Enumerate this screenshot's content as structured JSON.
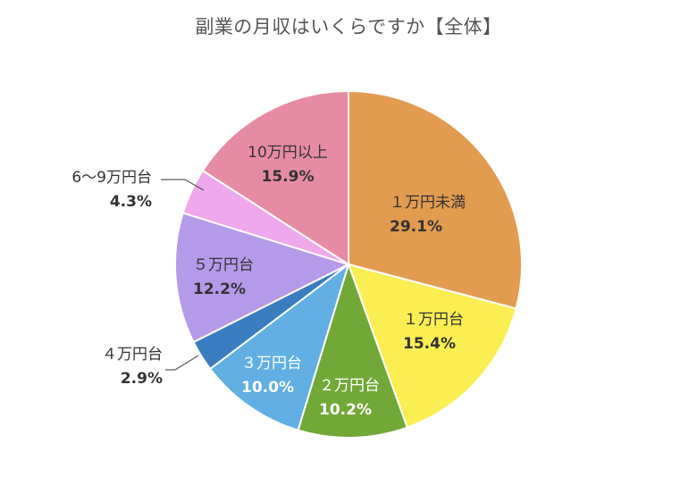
{
  "chart_data": {
    "type": "pie",
    "title": "副業の月収はいくらですか【全体】",
    "start_angle_deg": 0,
    "direction": "clockwise",
    "categories": [
      "1万円未満",
      "1万円台",
      "2万円台",
      "3万円台",
      "4万円台",
      "5万円台",
      "6〜9万円台",
      "10万円以上"
    ],
    "values": [
      29.1,
      15.4,
      10.2,
      10.0,
      2.9,
      12.2,
      4.3,
      15.9
    ],
    "labels": [
      "29.1%",
      "15.4%",
      "10.2%",
      "10.0%",
      "2.9%",
      "12.2%",
      "4.3%",
      "15.9%"
    ],
    "colors": [
      "#E39B4F",
      "#FBEE52",
      "#72A838",
      "#61AFE3",
      "#3A7DC0",
      "#B69AEA",
      "#F0A8EC",
      "#E78BA4"
    ],
    "unit": "%",
    "legend": "none (inline labels)"
  },
  "title": "副業の月収はいくらですか【全体】",
  "slices": [
    {
      "name": "１万円未満",
      "pct": "29.1%"
    },
    {
      "name": "１万円台",
      "pct": "15.4%"
    },
    {
      "name": "２万円台",
      "pct": "10.2%"
    },
    {
      "name": "３万円台",
      "pct": "10.0%"
    },
    {
      "name": "４万円台",
      "pct": "2.9%"
    },
    {
      "name": "５万円台",
      "pct": "12.2%"
    },
    {
      "name": "6〜9万円台",
      "pct": "4.3%"
    },
    {
      "name": "10万円以上",
      "pct": "15.9%"
    }
  ]
}
